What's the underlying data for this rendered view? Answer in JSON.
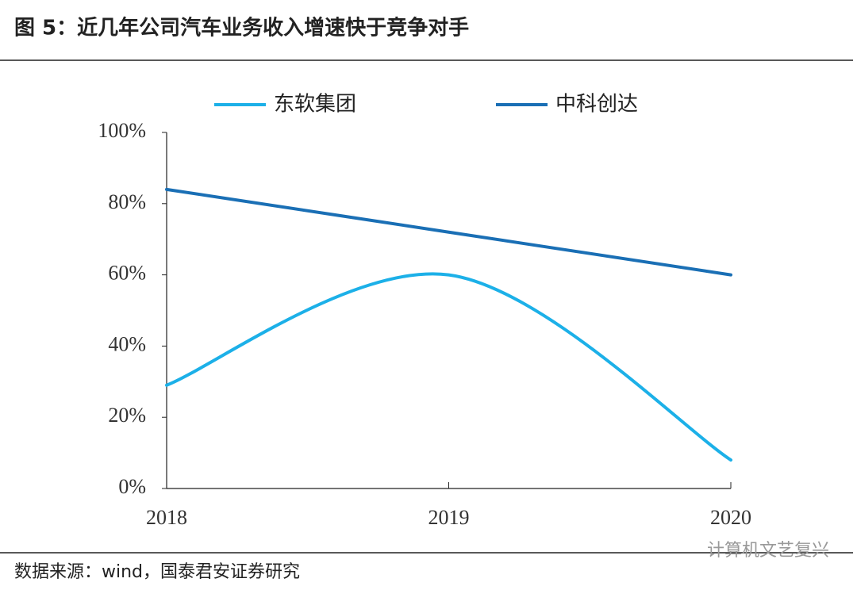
{
  "chart_data": {
    "type": "line",
    "title": "图 5：近几年公司汽车业务收入增速快于竞争对手",
    "categories": [
      "2018",
      "2019",
      "2020"
    ],
    "series": [
      {
        "name": "东软集团",
        "color": "#1cb0e8",
        "values": [
          29,
          60,
          8
        ]
      },
      {
        "name": "中科创达",
        "color": "#1a6fb5",
        "values": [
          84,
          72,
          60
        ]
      }
    ],
    "ylim": [
      0,
      100
    ],
    "yticks": [
      {
        "value": 0,
        "label": "0%"
      },
      {
        "value": 20,
        "label": "20%"
      },
      {
        "value": 40,
        "label": "40%"
      },
      {
        "value": 60,
        "label": "60%"
      },
      {
        "value": 80,
        "label": "80%"
      },
      {
        "value": 100,
        "label": "100%"
      }
    ],
    "smooth": true,
    "legend": "top",
    "source": "数据来源：wind，国泰君安证券研究",
    "watermark": "计算机文艺复兴"
  }
}
